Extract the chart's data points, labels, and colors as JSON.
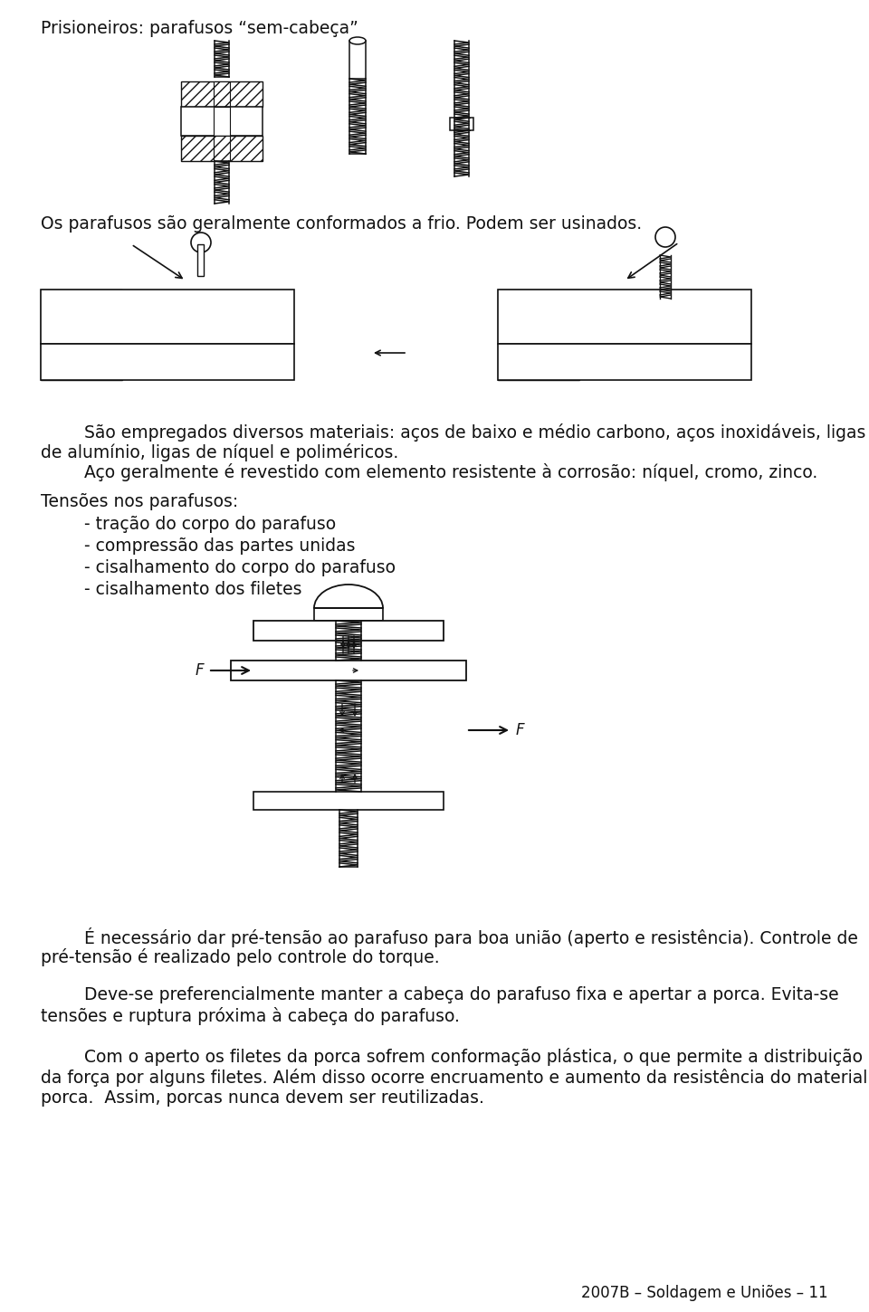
{
  "bg_color": "#ffffff",
  "text_color": "#111111",
  "title1": "Prisioneiros: parafusos “sem-cabeça”",
  "text1": "Os parafusos são geralmente conformados a frio. Podem ser usinados.",
  "text2_line1": "        São empregados diversos materiais: aços de baixo e médio carbono, aços inoxidáveis, ligas",
  "text2_line2": "de alumínio, ligas de níquel e poliméricos.",
  "text2_line3": "        Aço geralmente é revestido com elemento resistente à corrosão: níquel, cromo, zinco.",
  "text3_title": "Tensões nos parafusos:",
  "text3_items": [
    "        - tração do corpo do parafuso",
    "        - compressão das partes unidas",
    "        - cisalhamento do corpo do parafuso",
    "        - cisalhamento dos filetes"
  ],
  "text4_line1": "        É necessário dar pré-tensão ao parafuso para boa união (aperto e resistência). Controle de",
  "text4_line2": "pré-tensão é realizado pelo controle do torque.",
  "text5_line1": "        Deve-se preferencialmente manter a cabeça do parafuso fixa e apertar a porca. Evita-se",
  "text5_line2": "tensões e ruptura próxima à cabeça do parafuso.",
  "text6_line1": "        Com o aperto os filetes da porca sofrem conformação plástica, o que permite a distribuição",
  "text6_line2": "da força por alguns filetes. Além disso ocorre encruamento e aumento da resistência do material da",
  "text6_line3": "porca.  Assim, porcas nunca devem ser reutilizadas.",
  "footer": "2007B – Soldagem e Uniões – 11"
}
